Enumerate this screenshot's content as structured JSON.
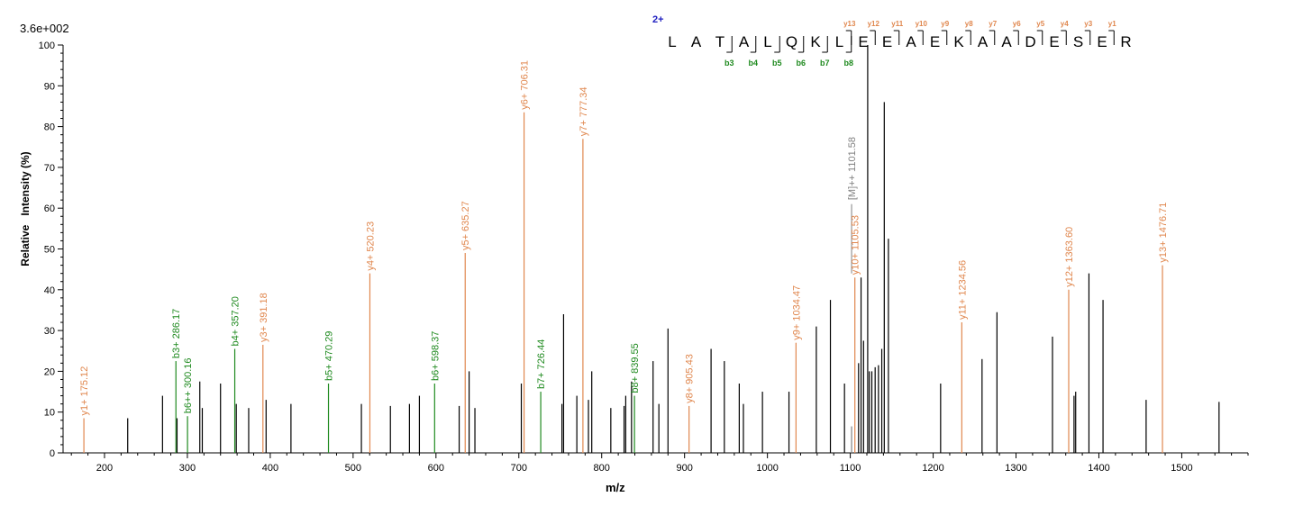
{
  "chart_data": {
    "type": "bar",
    "intensity_max_label": "3.6e+002",
    "xlabel": "m/z",
    "ylabel": "Relative   Intensity (%)",
    "xlim": [
      150,
      1580
    ],
    "ylim": [
      0,
      100
    ],
    "xticks": [
      200,
      300,
      400,
      500,
      600,
      700,
      800,
      900,
      1000,
      1100,
      1200,
      1300,
      1400,
      1500
    ],
    "yticks": [
      0,
      10,
      20,
      30,
      40,
      50,
      60,
      70,
      80,
      90,
      100
    ],
    "colors": {
      "y_ion": "#e0874e",
      "b_ion": "#1f8a1f",
      "unassigned": "#000000",
      "precursor": "#808080",
      "charge": "#2020c0"
    },
    "peptide": {
      "charge": "2+",
      "sequence": [
        "L",
        "A",
        "T",
        "A",
        "L",
        "Q",
        "K",
        "L",
        "E",
        "E",
        "A",
        "E",
        "K",
        "A",
        "A",
        "D",
        "E",
        "S",
        "E",
        "R"
      ],
      "y_labels": [
        {
          "after": 8,
          "label": "y13"
        },
        {
          "after": 9,
          "label": "y12"
        },
        {
          "after": 10,
          "label": "y11"
        },
        {
          "after": 11,
          "label": "y10"
        },
        {
          "after": 12,
          "label": "y9"
        },
        {
          "after": 13,
          "label": "y8"
        },
        {
          "after": 14,
          "label": "y7"
        },
        {
          "after": 15,
          "label": "y6"
        },
        {
          "after": 16,
          "label": "y5"
        },
        {
          "after": 17,
          "label": "y4"
        },
        {
          "after": 18,
          "label": "y3"
        },
        {
          "after": 19,
          "label": "y1"
        }
      ],
      "b_labels": [
        {
          "after": 3,
          "label": "b3"
        },
        {
          "after": 4,
          "label": "b4"
        },
        {
          "after": 5,
          "label": "b5"
        },
        {
          "after": 6,
          "label": "b6"
        },
        {
          "after": 7,
          "label": "b7"
        },
        {
          "after": 8,
          "label": "b8"
        }
      ]
    },
    "peaks": [
      {
        "mz": 175.12,
        "intensity": 8.5,
        "type": "y",
        "label": "y1+ 175.12"
      },
      {
        "mz": 228.0,
        "intensity": 8.5,
        "type": "other"
      },
      {
        "mz": 270.0,
        "intensity": 14,
        "type": "other"
      },
      {
        "mz": 286.17,
        "intensity": 22.5,
        "type": "b",
        "label": "b3+ 286.17"
      },
      {
        "mz": 287.5,
        "intensity": 8.5,
        "type": "other"
      },
      {
        "mz": 300.16,
        "intensity": 9,
        "type": "b",
        "label": "b6++ 300.16"
      },
      {
        "mz": 315.0,
        "intensity": 17.5,
        "type": "other"
      },
      {
        "mz": 318.0,
        "intensity": 11,
        "type": "other"
      },
      {
        "mz": 340.0,
        "intensity": 17,
        "type": "other"
      },
      {
        "mz": 357.2,
        "intensity": 25.5,
        "type": "b",
        "label": "b4+ 357.20"
      },
      {
        "mz": 359.0,
        "intensity": 12,
        "type": "other"
      },
      {
        "mz": 374.0,
        "intensity": 11,
        "type": "other"
      },
      {
        "mz": 391.18,
        "intensity": 26.5,
        "type": "y",
        "label": "y3+ 391.18"
      },
      {
        "mz": 395.0,
        "intensity": 13,
        "type": "other"
      },
      {
        "mz": 425.0,
        "intensity": 12,
        "type": "other"
      },
      {
        "mz": 470.29,
        "intensity": 17,
        "type": "b",
        "label": "b5+ 470.29"
      },
      {
        "mz": 510.0,
        "intensity": 12,
        "type": "other"
      },
      {
        "mz": 520.23,
        "intensity": 44,
        "type": "y",
        "label": "y4+ 520.23"
      },
      {
        "mz": 545.0,
        "intensity": 11.5,
        "type": "other"
      },
      {
        "mz": 568.0,
        "intensity": 12,
        "type": "other"
      },
      {
        "mz": 580.0,
        "intensity": 14,
        "type": "other"
      },
      {
        "mz": 598.37,
        "intensity": 17,
        "type": "b",
        "label": "b6+ 598.37"
      },
      {
        "mz": 628.0,
        "intensity": 11.5,
        "type": "other"
      },
      {
        "mz": 635.27,
        "intensity": 49,
        "type": "y",
        "label": "y5+ 635.27"
      },
      {
        "mz": 640.0,
        "intensity": 20,
        "type": "other"
      },
      {
        "mz": 647.0,
        "intensity": 11,
        "type": "other"
      },
      {
        "mz": 703.0,
        "intensity": 17,
        "type": "other"
      },
      {
        "mz": 706.31,
        "intensity": 83.5,
        "type": "y",
        "label": "y6+ 706.31"
      },
      {
        "mz": 726.44,
        "intensity": 15,
        "type": "b",
        "label": "b7+ 726.44"
      },
      {
        "mz": 752.0,
        "intensity": 12,
        "type": "other"
      },
      {
        "mz": 754.0,
        "intensity": 34,
        "type": "other"
      },
      {
        "mz": 770.0,
        "intensity": 14,
        "type": "other"
      },
      {
        "mz": 777.34,
        "intensity": 77,
        "type": "y",
        "label": "y7+ 777.34"
      },
      {
        "mz": 784.0,
        "intensity": 13,
        "type": "other"
      },
      {
        "mz": 788.0,
        "intensity": 20,
        "type": "other"
      },
      {
        "mz": 811.0,
        "intensity": 11,
        "type": "other"
      },
      {
        "mz": 827.0,
        "intensity": 11.5,
        "type": "other"
      },
      {
        "mz": 829.0,
        "intensity": 14,
        "type": "other"
      },
      {
        "mz": 836.0,
        "intensity": 17.5,
        "type": "other"
      },
      {
        "mz": 839.55,
        "intensity": 14,
        "type": "b",
        "label": "b8+ 839.55"
      },
      {
        "mz": 862.0,
        "intensity": 22.5,
        "type": "other"
      },
      {
        "mz": 869.0,
        "intensity": 12,
        "type": "other"
      },
      {
        "mz": 880.0,
        "intensity": 30.5,
        "type": "other"
      },
      {
        "mz": 905.43,
        "intensity": 11.5,
        "type": "y",
        "label": "y8+ 905.43"
      },
      {
        "mz": 932.0,
        "intensity": 25.5,
        "type": "other"
      },
      {
        "mz": 948.0,
        "intensity": 22.5,
        "type": "other"
      },
      {
        "mz": 966.0,
        "intensity": 17,
        "type": "other"
      },
      {
        "mz": 971.0,
        "intensity": 12,
        "type": "other"
      },
      {
        "mz": 994.0,
        "intensity": 15,
        "type": "other"
      },
      {
        "mz": 1026.0,
        "intensity": 15,
        "type": "other"
      },
      {
        "mz": 1034.47,
        "intensity": 27,
        "type": "y",
        "label": "y9+ 1034.47"
      },
      {
        "mz": 1059.0,
        "intensity": 31,
        "type": "other"
      },
      {
        "mz": 1076.0,
        "intensity": 37.5,
        "type": "other"
      },
      {
        "mz": 1093.0,
        "intensity": 17,
        "type": "other"
      },
      {
        "mz": 1101.58,
        "intensity": 6.5,
        "type": "precursor",
        "label": "[M]++ 1101.58"
      },
      {
        "mz": 1105.53,
        "intensity": 43,
        "type": "y",
        "label": "y10+ 1105.53"
      },
      {
        "mz": 1110.0,
        "intensity": 22,
        "type": "other"
      },
      {
        "mz": 1113.0,
        "intensity": 43,
        "type": "other"
      },
      {
        "mz": 1116.0,
        "intensity": 27.5,
        "type": "other"
      },
      {
        "mz": 1121.0,
        "intensity": 100,
        "type": "other"
      },
      {
        "mz": 1123.0,
        "intensity": 20,
        "type": "other"
      },
      {
        "mz": 1126.0,
        "intensity": 20,
        "type": "other"
      },
      {
        "mz": 1130.0,
        "intensity": 21,
        "type": "other"
      },
      {
        "mz": 1134.0,
        "intensity": 21.5,
        "type": "other"
      },
      {
        "mz": 1138.0,
        "intensity": 25.5,
        "type": "other"
      },
      {
        "mz": 1141.0,
        "intensity": 86,
        "type": "other"
      },
      {
        "mz": 1146.0,
        "intensity": 52.5,
        "type": "other"
      },
      {
        "mz": 1209.0,
        "intensity": 17,
        "type": "other"
      },
      {
        "mz": 1234.56,
        "intensity": 32,
        "type": "y",
        "label": "y11+ 1234.56"
      },
      {
        "mz": 1259.0,
        "intensity": 23,
        "type": "other"
      },
      {
        "mz": 1277.0,
        "intensity": 34.5,
        "type": "other"
      },
      {
        "mz": 1344.0,
        "intensity": 28.5,
        "type": "other"
      },
      {
        "mz": 1363.6,
        "intensity": 40,
        "type": "y",
        "label": "y12+ 1363.60"
      },
      {
        "mz": 1370.0,
        "intensity": 14,
        "type": "other"
      },
      {
        "mz": 1372.0,
        "intensity": 15,
        "type": "other"
      },
      {
        "mz": 1388.0,
        "intensity": 44,
        "type": "other"
      },
      {
        "mz": 1405.0,
        "intensity": 37.5,
        "type": "other"
      },
      {
        "mz": 1457.0,
        "intensity": 13,
        "type": "other"
      },
      {
        "mz": 1476.71,
        "intensity": 46,
        "type": "y",
        "label": "y13+ 1476.71"
      },
      {
        "mz": 1545.0,
        "intensity": 12.5,
        "type": "other"
      }
    ]
  }
}
